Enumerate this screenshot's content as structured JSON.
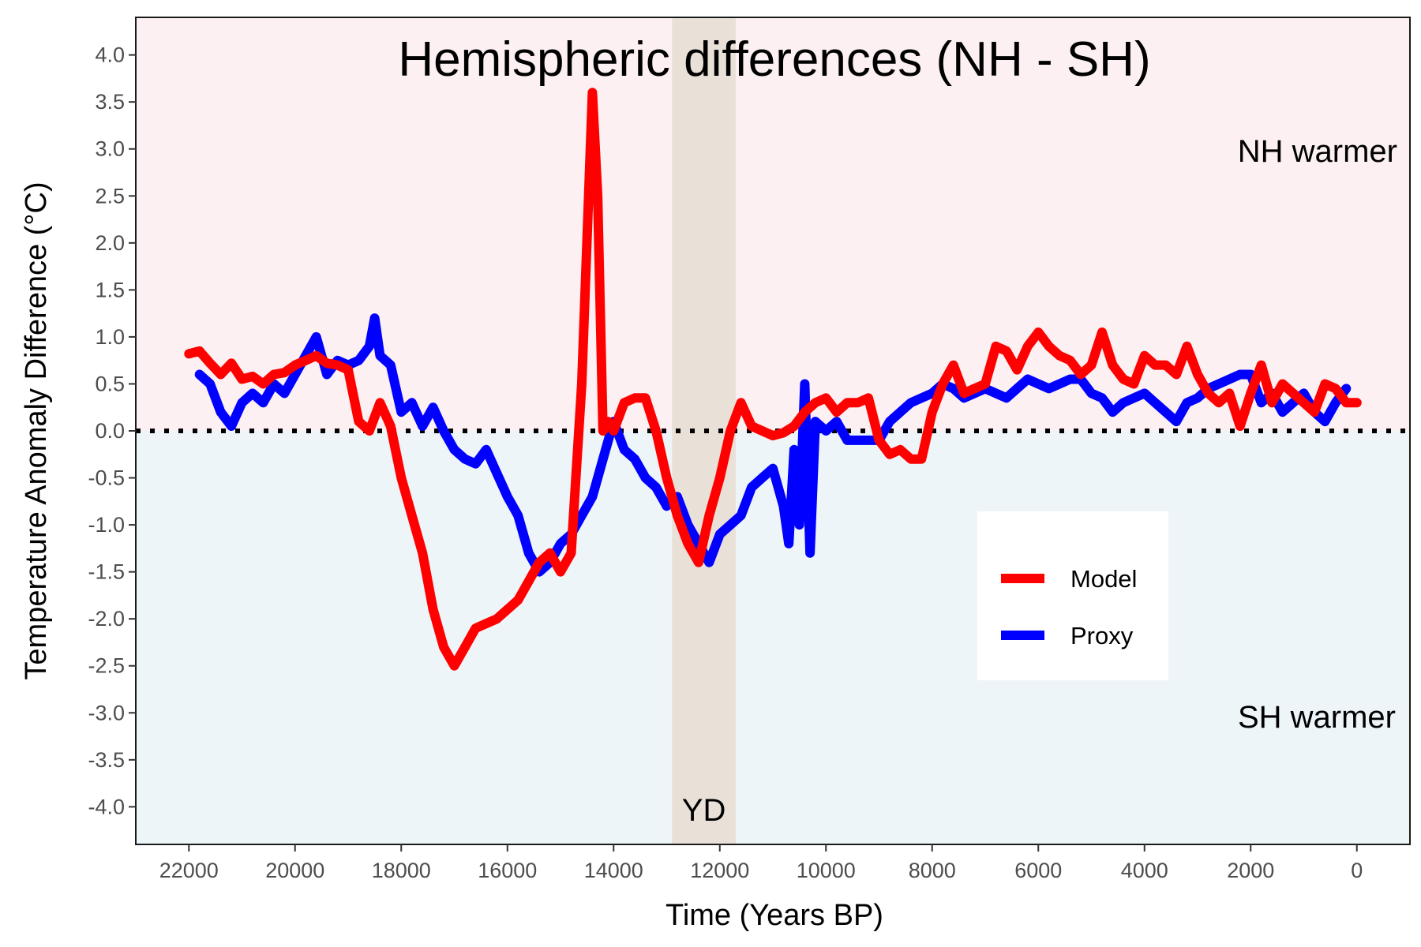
{
  "chart_data": {
    "type": "line",
    "title": "Hemispheric differences (NH - SH)",
    "xlabel": "Time (Years BP)",
    "ylabel": "Temperature Anomaly Difference (°C)",
    "xlim": [
      23000,
      -1000
    ],
    "ylim": [
      -4.4,
      4.4
    ],
    "x_reversed": true,
    "x_ticks": [
      22000,
      20000,
      18000,
      16000,
      14000,
      12000,
      10000,
      8000,
      6000,
      4000,
      2000,
      0
    ],
    "y_ticks": [
      4.0,
      3.5,
      3.0,
      2.5,
      2.0,
      1.5,
      1.0,
      0.5,
      0.0,
      -0.5,
      -1.0,
      -1.5,
      -2.0,
      -2.5,
      -3.0,
      -3.5,
      -4.0
    ],
    "y_tick_labels": [
      "4.0",
      "3.5",
      "3.0",
      "2.5",
      "2.0",
      "1.5",
      "1.0",
      "0.5",
      "0.0",
      "-0.5",
      "-1.0",
      "-1.5",
      "-2.0",
      "-2.5",
      "-3.0",
      "-3.5",
      "-4.0"
    ],
    "x_tick_labels": [
      "22000",
      "20000",
      "18000",
      "16000",
      "14000",
      "12000",
      "10000",
      "8000",
      "6000",
      "4000",
      "2000",
      "0"
    ],
    "grid": false,
    "legend_position": "center-right",
    "reference_line": {
      "y": 0,
      "style": "dotted"
    },
    "regions": [
      {
        "label": "NH warmer",
        "y_range": [
          0,
          4.4
        ],
        "color": "#fcf0f2"
      },
      {
        "label": "SH warmer",
        "y_range": [
          -4.4,
          0
        ],
        "color": "#eef5f9"
      }
    ],
    "shaded_period": {
      "label": "YD",
      "x_range": [
        12900,
        11700
      ],
      "color": "#e9e1d8"
    },
    "series": [
      {
        "name": "Model",
        "color": "#ff0000",
        "x": [
          22000,
          21800,
          21600,
          21400,
          21200,
          21000,
          20800,
          20600,
          20400,
          20200,
          20000,
          19800,
          19600,
          19400,
          19200,
          19000,
          18800,
          18600,
          18400,
          18200,
          18000,
          17800,
          17600,
          17400,
          17200,
          17000,
          16800,
          16600,
          16400,
          16200,
          16000,
          15800,
          15600,
          15400,
          15200,
          15000,
          14800,
          14600,
          14400,
          14300,
          14200,
          14100,
          14000,
          13800,
          13600,
          13400,
          13200,
          13000,
          12800,
          12600,
          12400,
          12200,
          12000,
          11800,
          11600,
          11400,
          11200,
          11000,
          10800,
          10600,
          10400,
          10200,
          10000,
          9800,
          9600,
          9400,
          9200,
          9000,
          8800,
          8600,
          8400,
          8200,
          8000,
          7800,
          7600,
          7400,
          7200,
          7000,
          6800,
          6600,
          6400,
          6200,
          6000,
          5800,
          5600,
          5400,
          5200,
          5000,
          4800,
          4600,
          4400,
          4200,
          4000,
          3800,
          3600,
          3400,
          3200,
          3000,
          2800,
          2600,
          2400,
          2200,
          2000,
          1800,
          1600,
          1400,
          1200,
          1000,
          800,
          600,
          400,
          200,
          0
        ],
        "y": [
          0.82,
          0.85,
          0.72,
          0.6,
          0.72,
          0.55,
          0.58,
          0.5,
          0.6,
          0.62,
          0.7,
          0.75,
          0.8,
          0.72,
          0.7,
          0.65,
          0.1,
          0.0,
          0.3,
          0.05,
          -0.5,
          -0.9,
          -1.3,
          -1.9,
          -2.3,
          -2.5,
          -2.3,
          -2.1,
          -2.05,
          -2.0,
          -1.9,
          -1.8,
          -1.6,
          -1.4,
          -1.3,
          -1.5,
          -1.3,
          0.5,
          3.6,
          2.5,
          0.0,
          0.1,
          0.0,
          0.3,
          0.35,
          0.35,
          0.0,
          -0.5,
          -0.9,
          -1.2,
          -1.4,
          -0.9,
          -0.5,
          0.0,
          0.3,
          0.05,
          0.0,
          -0.05,
          -0.02,
          0.05,
          0.2,
          0.3,
          0.35,
          0.2,
          0.3,
          0.3,
          0.35,
          -0.1,
          -0.25,
          -0.2,
          -0.3,
          -0.3,
          0.2,
          0.5,
          0.7,
          0.4,
          0.45,
          0.5,
          0.9,
          0.85,
          0.65,
          0.9,
          1.05,
          0.9,
          0.8,
          0.75,
          0.6,
          0.7,
          1.05,
          0.7,
          0.55,
          0.5,
          0.8,
          0.7,
          0.7,
          0.6,
          0.9,
          0.6,
          0.4,
          0.3,
          0.4,
          0.05,
          0.4,
          0.7,
          0.3,
          0.5,
          0.4,
          0.3,
          0.2,
          0.5,
          0.45,
          0.3,
          0.3
        ]
      },
      {
        "name": "Proxy",
        "color": "#0000ff",
        "x": [
          21800,
          21600,
          21400,
          21200,
          21000,
          20800,
          20600,
          20400,
          20200,
          20000,
          19800,
          19600,
          19400,
          19200,
          19000,
          18800,
          18600,
          18500,
          18400,
          18200,
          18000,
          17800,
          17600,
          17400,
          17200,
          17000,
          16800,
          16600,
          16400,
          16200,
          16000,
          15800,
          15600,
          15400,
          15200,
          15000,
          14800,
          14600,
          14400,
          14200,
          14000,
          13800,
          13600,
          13400,
          13200,
          13000,
          12800,
          12600,
          12400,
          12200,
          12000,
          11800,
          11600,
          11400,
          11200,
          11000,
          10800,
          10700,
          10600,
          10500,
          10400,
          10300,
          10200,
          10000,
          9800,
          9600,
          9400,
          9200,
          9000,
          8800,
          8600,
          8400,
          8200,
          8000,
          7800,
          7600,
          7400,
          7200,
          7000,
          6800,
          6600,
          6400,
          6200,
          6000,
          5800,
          5600,
          5400,
          5200,
          5000,
          4800,
          4600,
          4400,
          4200,
          4000,
          3800,
          3600,
          3400,
          3200,
          3000,
          2800,
          2600,
          2400,
          2200,
          2000,
          1800,
          1600,
          1400,
          1200,
          1000,
          800,
          600,
          400,
          200
        ],
        "y": [
          0.6,
          0.5,
          0.2,
          0.05,
          0.3,
          0.4,
          0.3,
          0.5,
          0.4,
          0.6,
          0.8,
          1.0,
          0.6,
          0.75,
          0.7,
          0.75,
          0.9,
          1.2,
          0.8,
          0.7,
          0.2,
          0.3,
          0.05,
          0.25,
          0.0,
          -0.2,
          -0.3,
          -0.35,
          -0.2,
          -0.45,
          -0.7,
          -0.9,
          -1.3,
          -1.5,
          -1.4,
          -1.2,
          -1.1,
          -0.9,
          -0.7,
          -0.3,
          0.1,
          -0.2,
          -0.3,
          -0.5,
          -0.6,
          -0.8,
          -0.7,
          -1.0,
          -1.2,
          -1.4,
          -1.1,
          -1.0,
          -0.9,
          -0.6,
          -0.5,
          -0.4,
          -0.8,
          -1.2,
          -0.2,
          -1.0,
          0.5,
          -1.3,
          0.1,
          0.0,
          0.1,
          -0.1,
          -0.1,
          -0.1,
          -0.1,
          0.1,
          0.2,
          0.3,
          0.35,
          0.4,
          0.5,
          0.45,
          0.35,
          0.4,
          0.45,
          0.4,
          0.35,
          0.45,
          0.55,
          0.5,
          0.45,
          0.5,
          0.55,
          0.55,
          0.4,
          0.35,
          0.2,
          0.3,
          0.35,
          0.4,
          0.3,
          0.2,
          0.1,
          0.3,
          0.35,
          0.45,
          0.5,
          0.55,
          0.6,
          0.6,
          0.3,
          0.4,
          0.2,
          0.3,
          0.4,
          0.2,
          0.1,
          0.3,
          0.45
        ]
      }
    ]
  }
}
